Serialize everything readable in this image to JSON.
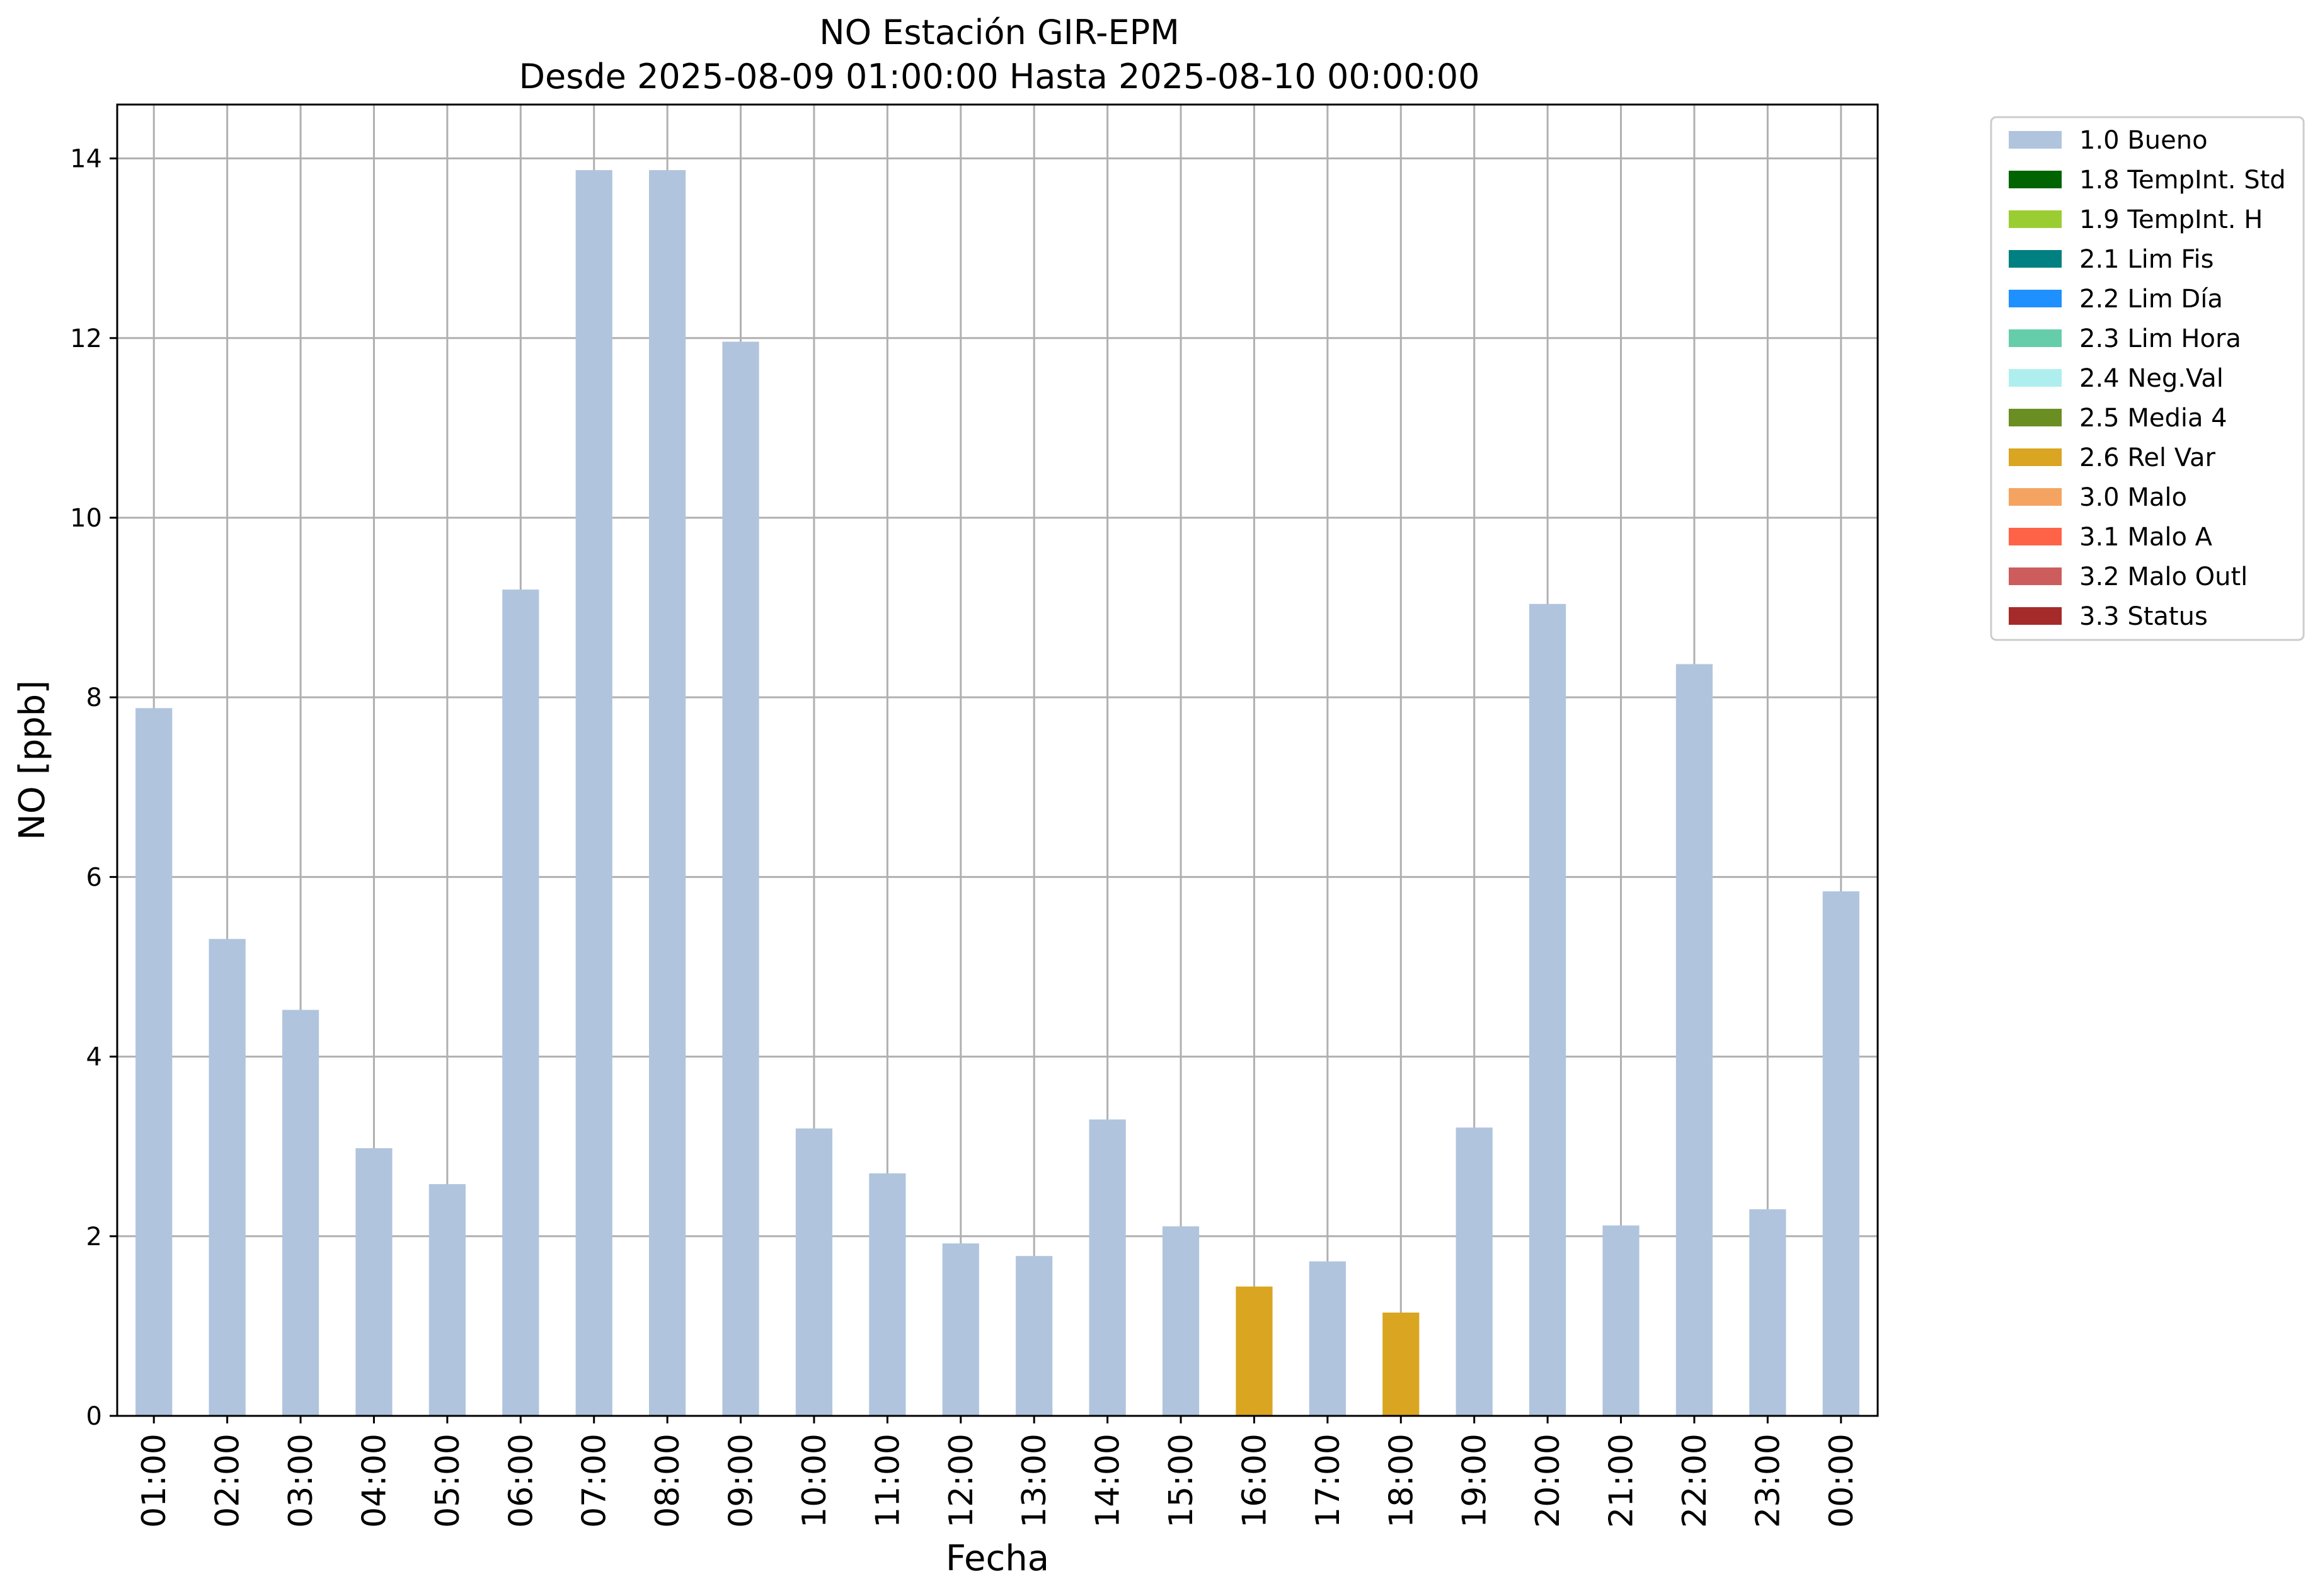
{
  "chart_data": {
    "type": "bar",
    "title": "NO Estación GIR-EPM",
    "subtitle": "Desde 2025-08-09 01:00:00 Hasta 2025-08-10 00:00:00",
    "xlabel": "Fecha",
    "ylabel": "NO [ppb]",
    "ylim": [
      0,
      14.6
    ],
    "yticks": [
      0,
      2,
      4,
      6,
      8,
      10,
      12,
      14
    ],
    "grid": true,
    "legend_position": "outside top-right",
    "categories": [
      "01:00",
      "02:00",
      "03:00",
      "04:00",
      "05:00",
      "06:00",
      "07:00",
      "08:00",
      "09:00",
      "10:00",
      "11:00",
      "12:00",
      "13:00",
      "14:00",
      "15:00",
      "16:00",
      "17:00",
      "18:00",
      "19:00",
      "20:00",
      "21:00",
      "22:00",
      "23:00",
      "00:00"
    ],
    "values": [
      7.88,
      5.31,
      4.52,
      2.98,
      2.58,
      9.2,
      13.87,
      13.87,
      11.96,
      3.2,
      2.7,
      1.92,
      1.78,
      3.3,
      2.11,
      1.44,
      1.72,
      1.15,
      3.21,
      9.04,
      2.12,
      8.37,
      2.3,
      5.84
    ],
    "flags": [
      "1.0 Bueno",
      "1.0 Bueno",
      "1.0 Bueno",
      "1.0 Bueno",
      "1.0 Bueno",
      "1.0 Bueno",
      "1.0 Bueno",
      "1.0 Bueno",
      "1.0 Bueno",
      "1.0 Bueno",
      "1.0 Bueno",
      "1.0 Bueno",
      "1.0 Bueno",
      "1.0 Bueno",
      "1.0 Bueno",
      "2.6 Rel Var",
      "1.0 Bueno",
      "2.6 Rel Var",
      "1.0 Bueno",
      "1.0 Bueno",
      "1.0 Bueno",
      "1.0 Bueno",
      "1.0 Bueno",
      "1.0 Bueno"
    ],
    "legend": [
      {
        "label": "1.0 Bueno",
        "color": "#b0c4de"
      },
      {
        "label": "1.8 TempInt. Std",
        "color": "#006400"
      },
      {
        "label": "1.9 TempInt. H",
        "color": "#9acd32"
      },
      {
        "label": "2.1 Lim Fis",
        "color": "#008080"
      },
      {
        "label": "2.2 Lim Día",
        "color": "#1e90ff"
      },
      {
        "label": "2.3 Lim Hora",
        "color": "#66cdaa"
      },
      {
        "label": "2.4 Neg.Val",
        "color": "#afeeee"
      },
      {
        "label": "2.5 Media 4",
        "color": "#6b8e23"
      },
      {
        "label": "2.6 Rel Var",
        "color": "#daa520"
      },
      {
        "label": "3.0 Malo",
        "color": "#f4a460"
      },
      {
        "label": "3.1 Malo A",
        "color": "#ff6347"
      },
      {
        "label": "3.2 Malo Outl",
        "color": "#cd5c5c"
      },
      {
        "label": "3.3 Status",
        "color": "#a52a2a"
      }
    ]
  }
}
